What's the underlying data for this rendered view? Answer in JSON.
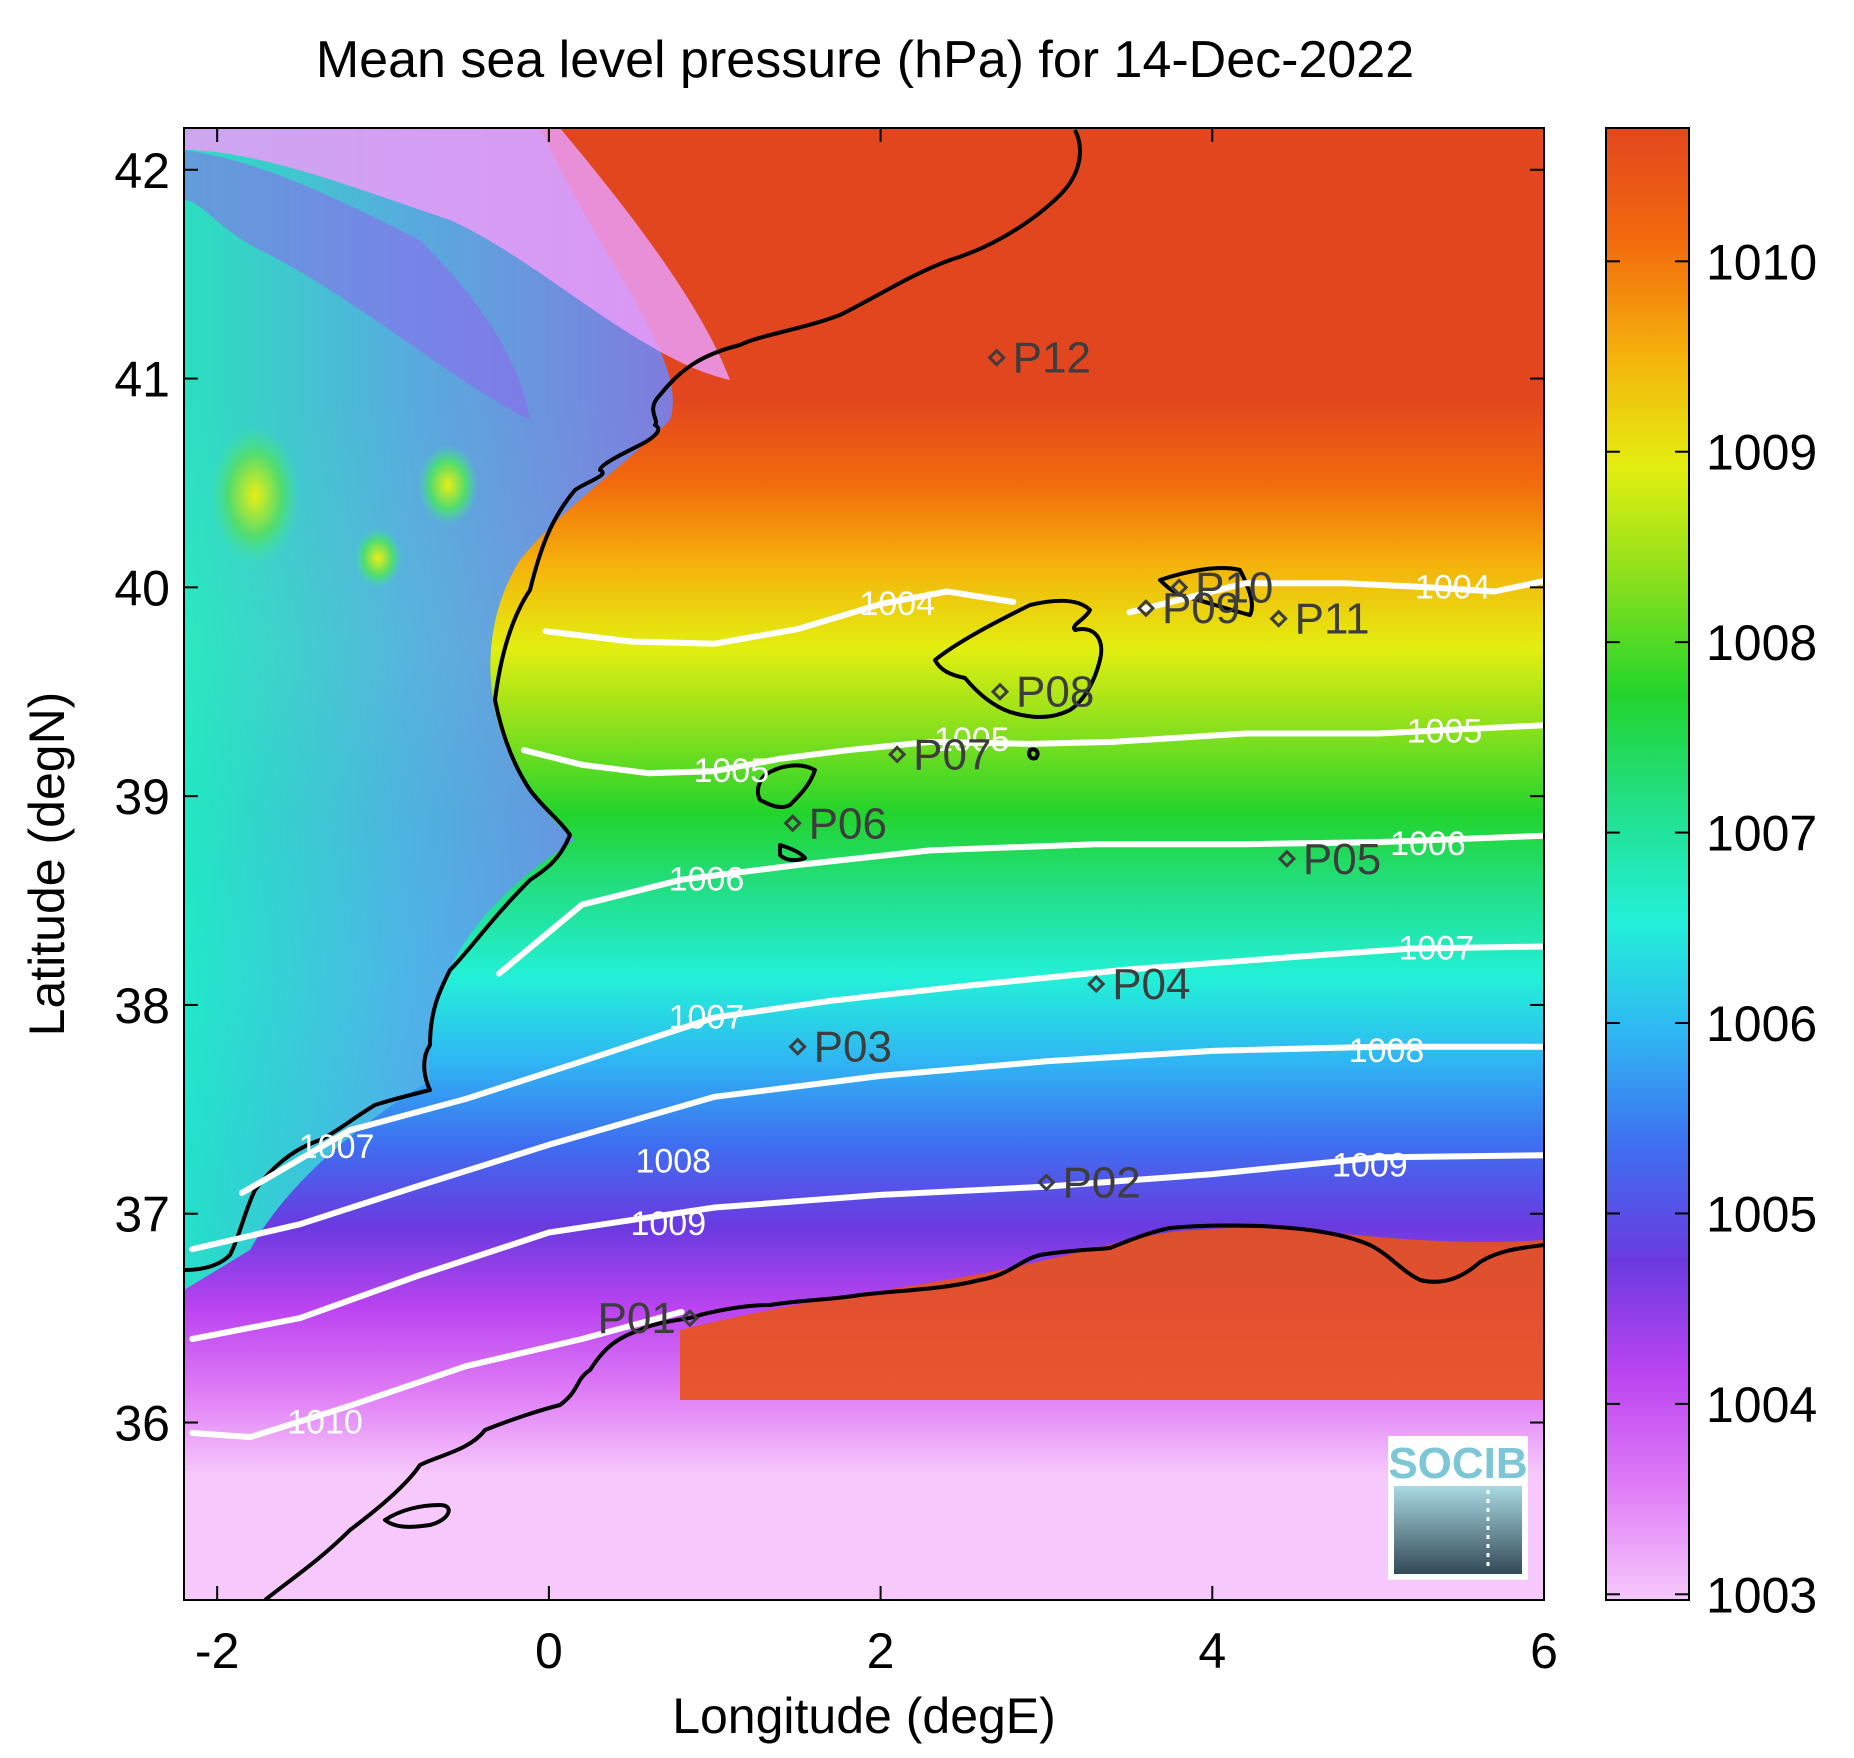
{
  "chart_data": {
    "type": "heatmap",
    "title": "Mean sea level pressure (hPa) for 14-Dec-2022",
    "xlabel": "Longitude (degE)",
    "ylabel": "Latitude (degN)",
    "xlim": [
      -2.2,
      6.0
    ],
    "ylim": [
      35.15,
      42.2
    ],
    "xticks": [
      "-2",
      "0",
      "2",
      "4",
      "6"
    ],
    "yticks": [
      "36",
      "37",
      "38",
      "39",
      "40",
      "41",
      "42"
    ],
    "colorbar": {
      "range": [
        1002.97,
        1010.7
      ],
      "ticks": [
        "1003",
        "1004",
        "1005",
        "1006",
        "1007",
        "1008",
        "1009",
        "1010"
      ],
      "colors": [
        "#f6c8fb",
        "#df7cf6",
        "#bb44f0",
        "#6a3ae0",
        "#3e6ff0",
        "#2fb6f3",
        "#23f0d8",
        "#22e08c",
        "#22d42c",
        "#88e01c",
        "#e3ee10",
        "#f5b20c",
        "#f26a0c",
        "#e2461e"
      ]
    },
    "grid": false,
    "contours": [
      {
        "level": "1004",
        "points": [
          [
            -0.02,
            39.79
          ],
          [
            0.5,
            39.74
          ],
          [
            1.0,
            39.73
          ],
          [
            1.5,
            39.8
          ],
          [
            2.0,
            39.92
          ],
          [
            2.4,
            39.98
          ],
          [
            2.8,
            39.93
          ]
        ]
      },
      {
        "level": "1004",
        "points": [
          [
            3.5,
            39.88
          ],
          [
            4.2,
            40.02
          ],
          [
            4.8,
            40.02
          ],
          [
            5.3,
            40.0
          ],
          [
            5.7,
            39.98
          ],
          [
            6.0,
            40.03
          ]
        ]
      },
      {
        "level": "1005",
        "points": [
          [
            -0.15,
            39.22
          ],
          [
            0.2,
            39.15
          ],
          [
            0.6,
            39.11
          ],
          [
            1.0,
            39.12
          ],
          [
            1.4,
            39.18
          ],
          [
            1.8,
            39.22
          ],
          [
            2.3,
            39.26
          ],
          [
            2.9,
            39.25
          ],
          [
            3.4,
            39.26
          ],
          [
            4.2,
            39.3
          ],
          [
            5.0,
            39.3
          ],
          [
            6.0,
            39.34
          ]
        ]
      },
      {
        "level": "1006",
        "points": [
          [
            -0.3,
            38.15
          ],
          [
            0.2,
            38.48
          ],
          [
            0.8,
            38.6
          ],
          [
            1.5,
            38.67
          ],
          [
            2.3,
            38.74
          ],
          [
            3.3,
            38.77
          ],
          [
            4.2,
            38.77
          ],
          [
            5.0,
            38.78
          ],
          [
            6.0,
            38.81
          ]
        ]
      },
      {
        "level": "1007",
        "points": [
          [
            -1.85,
            37.1
          ],
          [
            -1.2,
            37.4
          ],
          [
            -0.5,
            37.55
          ],
          [
            0.2,
            37.73
          ],
          [
            1.0,
            37.94
          ],
          [
            1.7,
            38.02
          ],
          [
            2.5,
            38.09
          ],
          [
            3.5,
            38.17
          ],
          [
            4.5,
            38.23
          ],
          [
            5.2,
            38.27
          ],
          [
            6.0,
            38.28
          ]
        ]
      },
      {
        "level": "1008",
        "points": [
          [
            -2.15,
            36.83
          ],
          [
            -1.5,
            36.95
          ],
          [
            -0.8,
            37.13
          ],
          [
            0.0,
            37.33
          ],
          [
            1.0,
            37.56
          ],
          [
            2.0,
            37.66
          ],
          [
            3.0,
            37.73
          ],
          [
            4.0,
            37.78
          ],
          [
            5.0,
            37.8
          ],
          [
            6.0,
            37.8
          ]
        ]
      },
      {
        "level": "1009",
        "points": [
          [
            -2.15,
            36.4
          ],
          [
            -1.5,
            36.5
          ],
          [
            -0.8,
            36.7
          ],
          [
            0.0,
            36.91
          ],
          [
            1.0,
            37.03
          ],
          [
            2.0,
            37.09
          ],
          [
            3.0,
            37.13
          ],
          [
            4.0,
            37.19
          ],
          [
            5.0,
            37.27
          ],
          [
            6.0,
            37.28
          ]
        ]
      },
      {
        "level": "1010",
        "points": [
          [
            -2.15,
            35.95
          ],
          [
            -1.8,
            35.93
          ],
          [
            -1.2,
            36.08
          ],
          [
            -0.5,
            36.27
          ],
          [
            0.2,
            36.4
          ],
          [
            0.8,
            36.53
          ]
        ]
      }
    ],
    "contour_labels": [
      {
        "text": "1004",
        "lon": 2.1,
        "lat": 39.92
      },
      {
        "text": "1004",
        "lon": 5.45,
        "lat": 40.0
      },
      {
        "text": "1005",
        "lon": 1.1,
        "lat": 39.12
      },
      {
        "text": "1005",
        "lon": 2.55,
        "lat": 39.27
      },
      {
        "text": "1005",
        "lon": 5.4,
        "lat": 39.31
      },
      {
        "text": "1006",
        "lon": 0.95,
        "lat": 38.6
      },
      {
        "text": "1006",
        "lon": 5.3,
        "lat": 38.77
      },
      {
        "text": "1007",
        "lon": 0.95,
        "lat": 37.94
      },
      {
        "text": "1007",
        "lon": 5.35,
        "lat": 38.27
      },
      {
        "text": "1007",
        "lon": -1.28,
        "lat": 37.32
      },
      {
        "text": "1008",
        "lon": 0.75,
        "lat": 37.25
      },
      {
        "text": "1008",
        "lon": 5.05,
        "lat": 37.78
      },
      {
        "text": "1009",
        "lon": 0.72,
        "lat": 36.95
      },
      {
        "text": "1009",
        "lon": 4.95,
        "lat": 37.23
      },
      {
        "text": "1010",
        "lon": -1.35,
        "lat": 36.0
      }
    ],
    "stations": [
      {
        "name": "P01",
        "lon": 0.85,
        "lat": 36.5
      },
      {
        "name": "P02",
        "lon": 3.0,
        "lat": 37.15
      },
      {
        "name": "P03",
        "lon": 1.5,
        "lat": 37.8
      },
      {
        "name": "P04",
        "lon": 3.3,
        "lat": 38.1
      },
      {
        "name": "P05",
        "lon": 4.45,
        "lat": 38.7
      },
      {
        "name": "P06",
        "lon": 1.47,
        "lat": 38.87
      },
      {
        "name": "P07",
        "lon": 2.1,
        "lat": 39.2
      },
      {
        "name": "P08",
        "lon": 2.72,
        "lat": 39.5
      },
      {
        "name": "P09",
        "lon": 3.6,
        "lat": 39.9
      },
      {
        "name": "P10",
        "lon": 3.8,
        "lat": 40.0
      },
      {
        "name": "P11",
        "lon": 4.4,
        "lat": 39.85
      },
      {
        "name": "P12",
        "lon": 2.7,
        "lat": 41.1
      }
    ]
  },
  "logo": {
    "text": "SOCIB"
  }
}
